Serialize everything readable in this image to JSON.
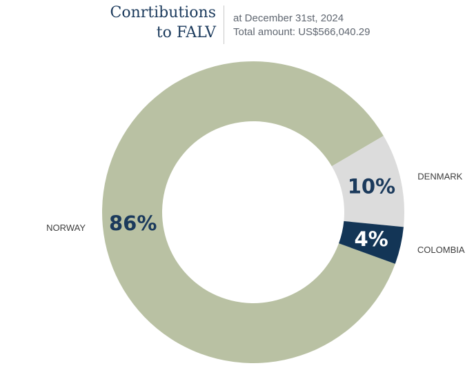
{
  "header": {
    "title_line1": "Conrtibutions",
    "title_line2": "to FALV",
    "subtitle_line1": "at December 31st, 2024",
    "subtitle_line2": "Total amount: US$566,040.29"
  },
  "chart_data": {
    "type": "pie",
    "donut": true,
    "title": "Conrtibutions to FALV",
    "categories": [
      "NORWAY",
      "DENMARK",
      "COLOMBIA"
    ],
    "values": [
      86,
      10,
      4
    ],
    "value_labels": [
      "86%",
      "10%",
      "4%"
    ],
    "colors": [
      "#b9c1a3",
      "#dcdcdc",
      "#133556"
    ],
    "label_colors": [
      "#1b3a5c",
      "#1b3a5c",
      "#ffffff"
    ],
    "legend": "none"
  }
}
